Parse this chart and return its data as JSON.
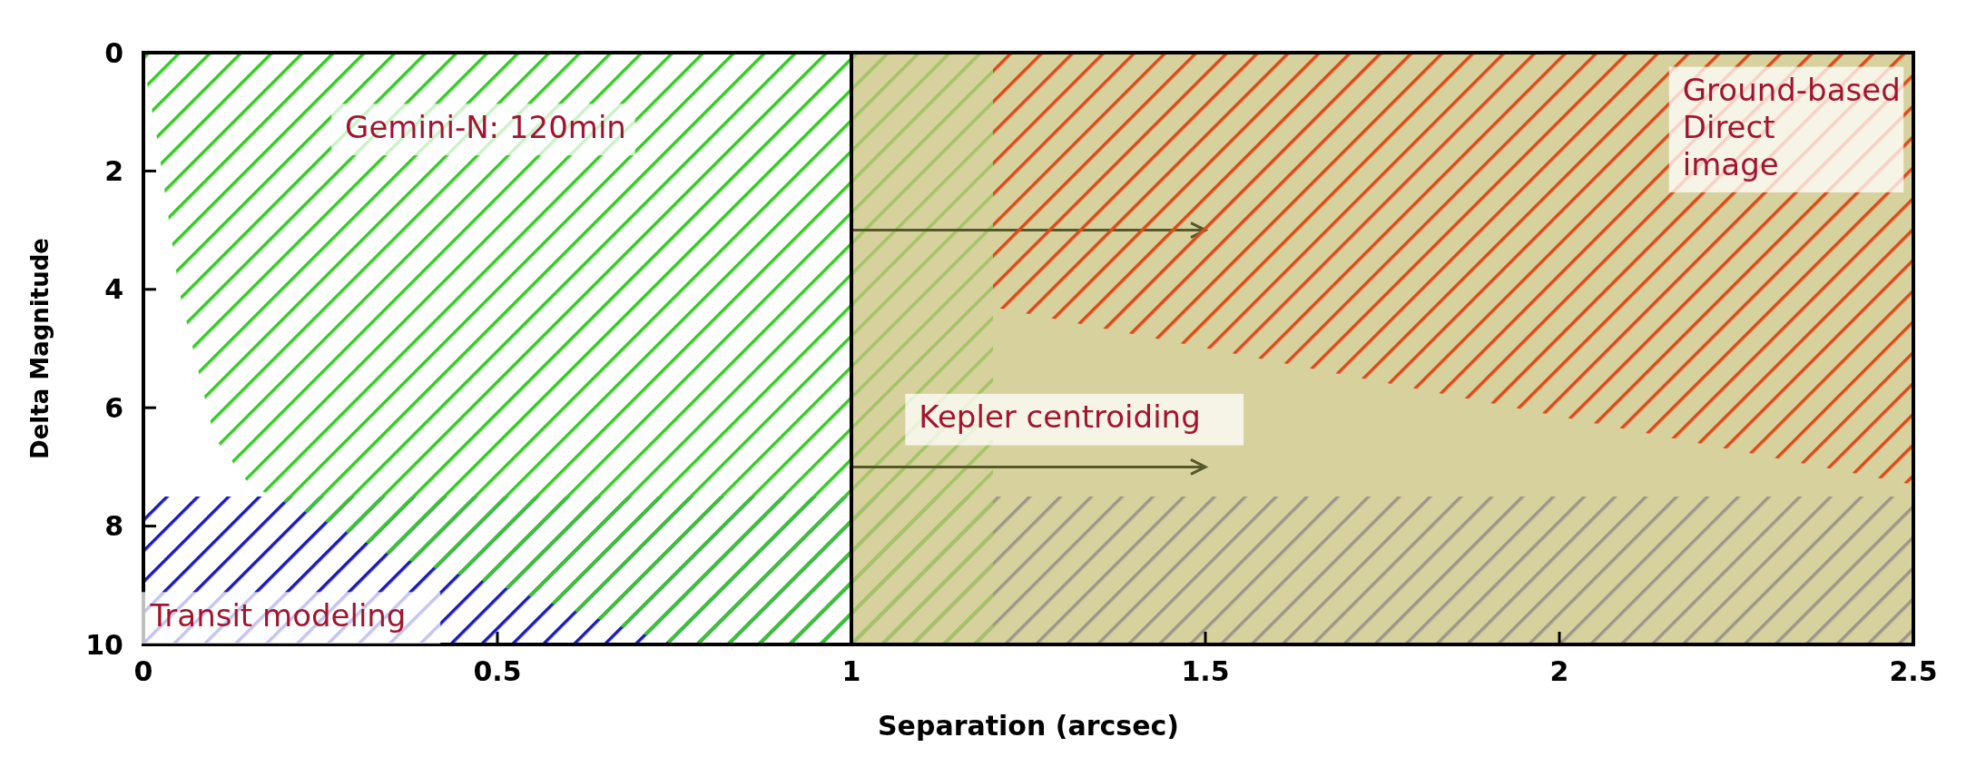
{
  "chart_data": {
    "type": "area",
    "xlabel": "Separation (arcsec)",
    "ylabel": "Delta Magnitude",
    "xlim": [
      0,
      2.5
    ],
    "ylim": [
      10,
      0
    ],
    "xticks": [
      0,
      0.5,
      1,
      1.5,
      2,
      2.5
    ],
    "yticks": [
      0,
      2,
      4,
      6,
      8,
      10
    ],
    "grid": false,
    "series": [
      {
        "name": "Gemini-N: 120min",
        "color": "#33cc22",
        "x": [
          0,
          0.005,
          0.02,
          0.05,
          0.1,
          0.15,
          0.2,
          0.27,
          0.35,
          0.5,
          0.75,
          1.2
        ],
        "values": [
          0,
          0.5,
          1.5,
          4,
          6.5,
          7.3,
          7.6,
          8,
          8.5,
          9,
          10,
          10
        ]
      },
      {
        "name": "Ground-based Direct image",
        "color": "#dd4a1a",
        "x": [
          1.2,
          2.5
        ],
        "values": [
          4.3,
          7.3
        ]
      }
    ],
    "bands": [
      {
        "axis": "y",
        "from": 7.5,
        "to": 10,
        "color": "#1a1ab8",
        "label": "Transit modeling"
      },
      {
        "axis": "x",
        "from": 1,
        "to": 2.5,
        "color": "#c9c27c",
        "label": "Kepler centroiding"
      }
    ],
    "ref_lines": [
      {
        "axis": "x",
        "value": 1,
        "color": "#000000"
      }
    ]
  }
}
